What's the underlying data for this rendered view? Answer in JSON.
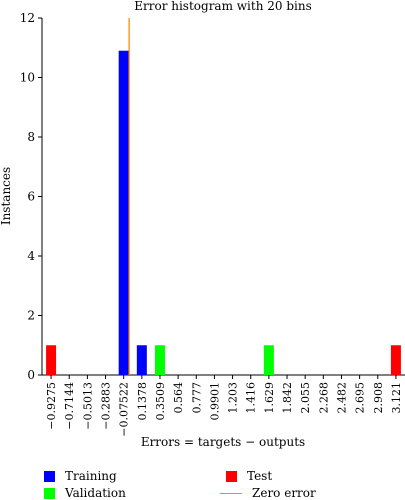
{
  "chart_data": {
    "type": "bar",
    "title": "Error histogram with 20 bins",
    "xlabel": "Errors = targets − outputs",
    "ylabel": "Instances",
    "ylim": [
      0,
      12
    ],
    "yticks": [
      0,
      2,
      4,
      6,
      8,
      10,
      12
    ],
    "categories": [
      "−0.9275",
      "−0.7144",
      "−0.5013",
      "−0.2883",
      "−0.07522",
      "0.1378",
      "0.3509",
      "0.564",
      "0.777",
      "0.9901",
      "1.203",
      "1.416",
      "1.629",
      "1.842",
      "2.055",
      "2.268",
      "2.482",
      "2.695",
      "2.908",
      "3.121"
    ],
    "series": [
      {
        "name": "Training",
        "values": [
          0,
          0,
          0,
          0,
          10.9,
          1,
          0,
          0,
          0,
          0,
          0,
          0,
          0,
          0,
          0,
          0,
          0,
          0,
          0,
          0
        ]
      },
      {
        "name": "Validation",
        "values": [
          0,
          0,
          0,
          0,
          0,
          0,
          1,
          0,
          0,
          0,
          0,
          0,
          1,
          0,
          0,
          0,
          0,
          0,
          0,
          0
        ]
      },
      {
        "name": "Test",
        "values": [
          1,
          0,
          0,
          0,
          0,
          0,
          0,
          0,
          0,
          0,
          0,
          0,
          0,
          0,
          0,
          0,
          0,
          0,
          0,
          1
        ]
      }
    ],
    "zero_error_line": {
      "name": "Zero error",
      "x_category_index": 4.3
    },
    "grid": false,
    "legend_position": "bottom"
  },
  "colors": {
    "Training": "#0000ff",
    "Validation": "#00ff00",
    "Test": "#ff0000",
    "Zero error": "#ff8c00"
  }
}
